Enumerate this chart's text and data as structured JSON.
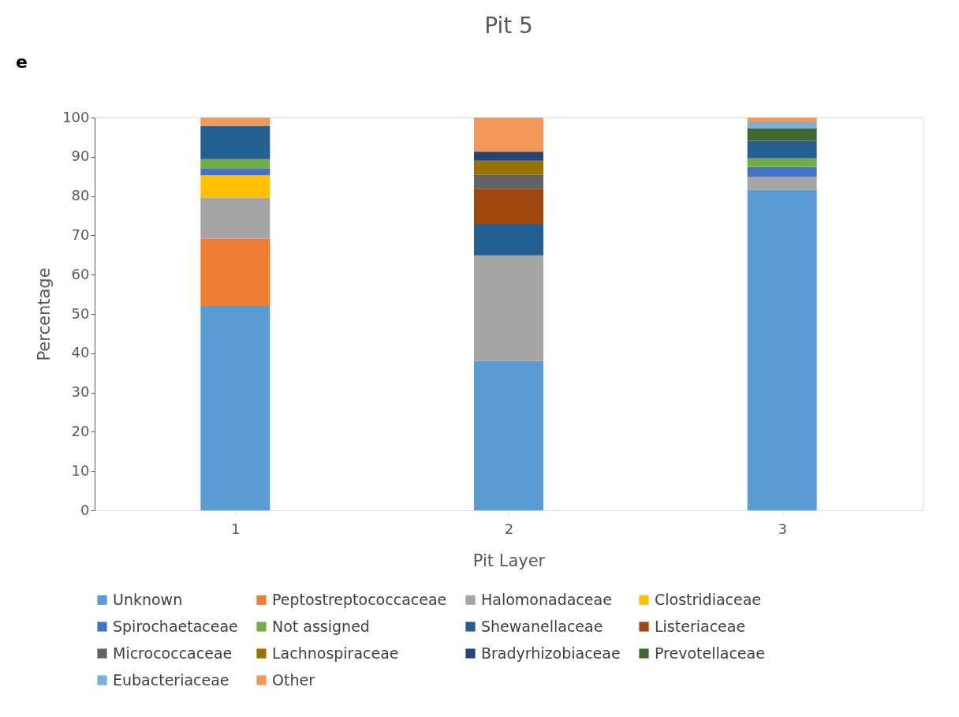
{
  "chart_data": {
    "type": "bar",
    "stacked": true,
    "title": "Pit 5",
    "xlabel": "Pit Layer",
    "ylabel": "Percentage",
    "annotations": [
      "e"
    ],
    "categories": [
      "1",
      "2",
      "3"
    ],
    "ylim": [
      0,
      100
    ],
    "yticks": [
      0,
      10,
      20,
      30,
      40,
      50,
      60,
      70,
      80,
      90,
      100
    ],
    "grid": false,
    "legend": "bottom",
    "series": [
      {
        "name": "Unknown",
        "color": "#5b9bd5",
        "values": [
          52.0,
          38.0,
          81.6
        ]
      },
      {
        "name": "Peptostreptococcaceae",
        "color": "#ed7d31",
        "values": [
          17.2,
          null,
          null
        ]
      },
      {
        "name": "Halomonadaceae",
        "color": "#a5a5a5",
        "values": [
          10.4,
          26.9,
          3.3
        ]
      },
      {
        "name": "Clostridiaceae",
        "color": "#ffc000",
        "values": [
          5.7,
          null,
          null
        ]
      },
      {
        "name": "Spirochaetaceae",
        "color": "#4472c4",
        "values": [
          1.8,
          null,
          2.5
        ]
      },
      {
        "name": "Not assigned",
        "color": "#70ad47",
        "values": [
          2.3,
          null,
          2.2
        ]
      },
      {
        "name": "Shewanellaceae",
        "color": "#255e91",
        "values": [
          8.5,
          8.0,
          4.5
        ]
      },
      {
        "name": "Listeriaceae",
        "color": "#9e480e",
        "values": [
          null,
          9.0,
          null
        ]
      },
      {
        "name": "Micrococcaceae",
        "color": "#636363",
        "values": [
          null,
          3.5,
          null
        ]
      },
      {
        "name": "Lachnospiraceae",
        "color": "#997300",
        "values": [
          null,
          3.6,
          null
        ]
      },
      {
        "name": "Bradyrhizobiaceae",
        "color": "#264478",
        "values": [
          null,
          2.3,
          null
        ]
      },
      {
        "name": "Prevotellaceae",
        "color": "#43682b",
        "values": [
          null,
          null,
          3.1
        ]
      },
      {
        "name": "Eubacteriaceae",
        "color": "#7cafdd",
        "values": [
          null,
          null,
          1.6
        ]
      },
      {
        "name": "Other",
        "color": "#f1975a",
        "values": [
          2.1,
          8.7,
          1.2
        ]
      }
    ]
  }
}
